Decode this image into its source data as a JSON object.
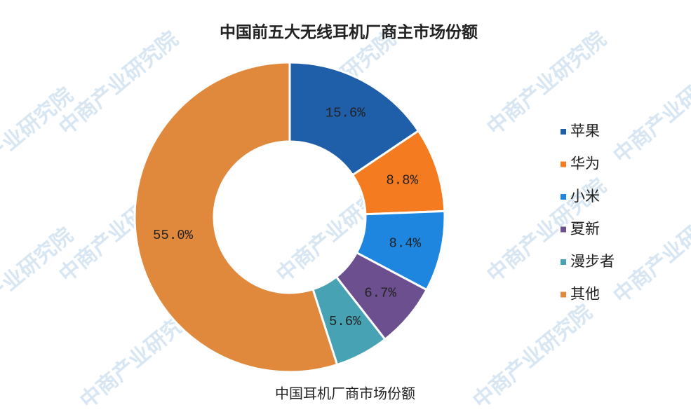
{
  "chart_data": {
    "type": "donut",
    "title": "中国前五大无线耳机厂商主市场份额",
    "categories": [
      "苹果",
      "华为",
      "小米",
      "夏新",
      "漫步者",
      "其他"
    ],
    "values": [
      15.6,
      8.8,
      8.4,
      6.7,
      5.6,
      55.0
    ],
    "value_labels": [
      "15.6%",
      "8.8%",
      "8.4%",
      "6.7%",
      "5.6%",
      "55.0%"
    ],
    "colors": [
      "#1f5ea8",
      "#f47b20",
      "#1f86e0",
      "#6b4f8e",
      "#47a2b4",
      "#e0893c"
    ],
    "legend": "right",
    "watermark": "中商产业研究院"
  },
  "caption": "中国耳机厂商市场份额"
}
